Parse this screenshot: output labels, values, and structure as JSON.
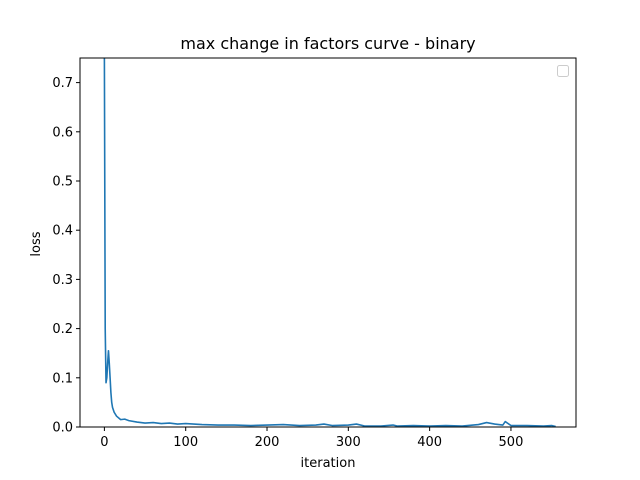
{
  "chart_data": {
    "type": "line",
    "title": "max change in factors curve - binary",
    "xlabel": "iteration",
    "ylabel": "loss",
    "xlim": [
      -30,
      580
    ],
    "ylim": [
      0,
      0.75
    ],
    "xticks": [
      0,
      100,
      200,
      300,
      400,
      500
    ],
    "yticks": [
      0.0,
      0.1,
      0.2,
      0.3,
      0.4,
      0.5,
      0.6,
      0.7
    ],
    "ytick_labels": [
      "0.0",
      "0.1",
      "0.2",
      "0.3",
      "0.4",
      "0.5",
      "0.6",
      "0.7"
    ],
    "grid": false,
    "legend": {
      "placement": "top-right",
      "entries": []
    },
    "colors": {
      "line": "#1f77b4"
    },
    "series": [
      {
        "x": [
          0,
          1,
          2,
          3,
          4,
          5,
          6,
          7,
          8,
          9,
          10,
          12,
          15,
          20,
          25,
          30,
          40,
          50,
          60,
          70,
          80,
          90,
          100,
          120,
          140,
          160,
          180,
          200,
          220,
          240,
          260,
          270,
          280,
          300,
          310,
          320,
          340,
          355,
          360,
          380,
          400,
          420,
          440,
          460,
          470,
          480,
          490,
          493,
          500,
          520,
          540,
          550,
          555
        ],
        "y": [
          0.75,
          0.2,
          0.09,
          0.1,
          0.13,
          0.155,
          0.13,
          0.1,
          0.07,
          0.05,
          0.04,
          0.03,
          0.022,
          0.015,
          0.016,
          0.013,
          0.01,
          0.008,
          0.009,
          0.007,
          0.008,
          0.006,
          0.007,
          0.005,
          0.004,
          0.004,
          0.003,
          0.004,
          0.005,
          0.003,
          0.004,
          0.006,
          0.003,
          0.004,
          0.006,
          0.002,
          0.002,
          0.004,
          0.002,
          0.003,
          0.002,
          0.003,
          0.002,
          0.005,
          0.009,
          0.006,
          0.004,
          0.011,
          0.003,
          0.003,
          0.002,
          0.003,
          0.001
        ]
      }
    ]
  }
}
